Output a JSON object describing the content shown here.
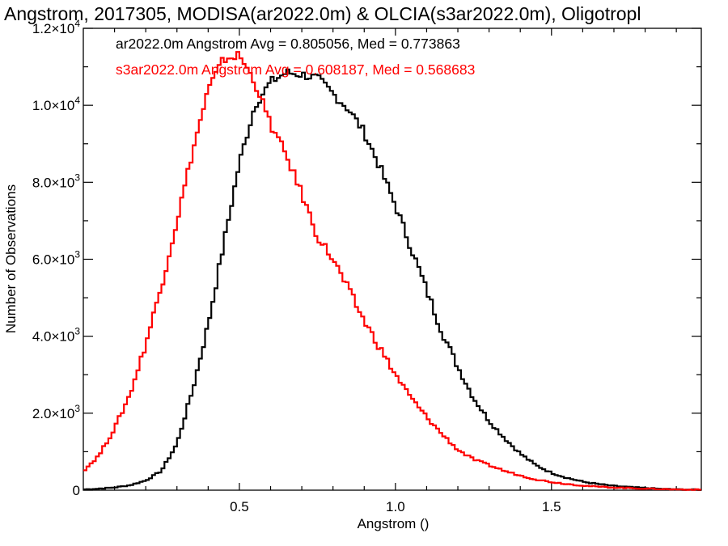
{
  "chart_data": {
    "type": "line",
    "title": "Angstrom, 2017305, MODISA(ar2022.0m) & OLCIA(s3ar2022.0m), Oligotropl",
    "xlabel": "Angstrom ()",
    "ylabel": "Number of Observations",
    "xlim": [
      0.0,
      1.98
    ],
    "ylim": [
      0,
      12000
    ],
    "x_ticks": [
      {
        "value": 0.5,
        "label": "0.5"
      },
      {
        "value": 1.0,
        "label": "1.0"
      },
      {
        "value": 1.5,
        "label": "1.5"
      }
    ],
    "y_ticks": [
      {
        "value": 0,
        "mant": "0",
        "exp": ""
      },
      {
        "value": 2000,
        "mant": "2.0×10",
        "exp": "3"
      },
      {
        "value": 4000,
        "mant": "4.0×10",
        "exp": "3"
      },
      {
        "value": 6000,
        "mant": "6.0×10",
        "exp": "3"
      },
      {
        "value": 8000,
        "mant": "8.0×10",
        "exp": "3"
      },
      {
        "value": 10000,
        "mant": "1.0×10",
        "exp": "4"
      },
      {
        "value": 12000,
        "mant": "1.2×10",
        "exp": "4"
      }
    ],
    "grid": false,
    "legend_placement": "top-left",
    "series": [
      {
        "name": "ar2022.0m",
        "legend_text": "ar2022.0m Angstrom Avg = 0.805056, Med = 0.773863",
        "color": "#000000",
        "x": [
          0.0,
          0.05,
          0.1,
          0.15,
          0.2,
          0.25,
          0.3,
          0.35,
          0.4,
          0.45,
          0.5,
          0.55,
          0.6,
          0.65,
          0.7,
          0.75,
          0.8,
          0.85,
          0.9,
          0.95,
          1.0,
          1.05,
          1.1,
          1.15,
          1.2,
          1.25,
          1.3,
          1.35,
          1.4,
          1.45,
          1.5,
          1.55,
          1.6,
          1.65,
          1.7,
          1.75,
          1.8,
          1.85,
          1.9,
          1.95,
          1.98
        ],
        "y": [
          20,
          40,
          70,
          130,
          250,
          500,
          1200,
          2600,
          4300,
          6400,
          8500,
          10000,
          10600,
          10850,
          10800,
          10700,
          10300,
          9900,
          9300,
          8400,
          7400,
          6300,
          5200,
          4100,
          3200,
          2400,
          1800,
          1350,
          950,
          650,
          450,
          320,
          220,
          160,
          110,
          80,
          55,
          35,
          20,
          15,
          10
        ]
      },
      {
        "name": "s3ar2022.0m",
        "legend_text": "s3ar2022.0m Angstrom Avg = 0.608187, Med = 0.568683",
        "color": "#ff0000",
        "x": [
          0.0,
          0.05,
          0.1,
          0.15,
          0.2,
          0.25,
          0.3,
          0.35,
          0.4,
          0.45,
          0.5,
          0.55,
          0.6,
          0.65,
          0.7,
          0.75,
          0.8,
          0.85,
          0.9,
          0.95,
          1.0,
          1.05,
          1.1,
          1.15,
          1.2,
          1.25,
          1.3,
          1.35,
          1.4,
          1.45,
          1.5,
          1.55,
          1.6,
          1.65,
          1.7,
          1.75,
          1.8,
          1.85,
          1.9,
          1.95,
          1.98
        ],
        "y": [
          500,
          900,
          1600,
          2500,
          3800,
          5300,
          7000,
          8800,
          10400,
          11200,
          11300,
          10600,
          9500,
          8700,
          7700,
          6600,
          6000,
          5200,
          4400,
          3700,
          3000,
          2400,
          1900,
          1450,
          1050,
          800,
          650,
          500,
          380,
          280,
          210,
          160,
          120,
          90,
          70,
          55,
          40,
          30,
          20,
          15,
          10
        ]
      }
    ]
  }
}
